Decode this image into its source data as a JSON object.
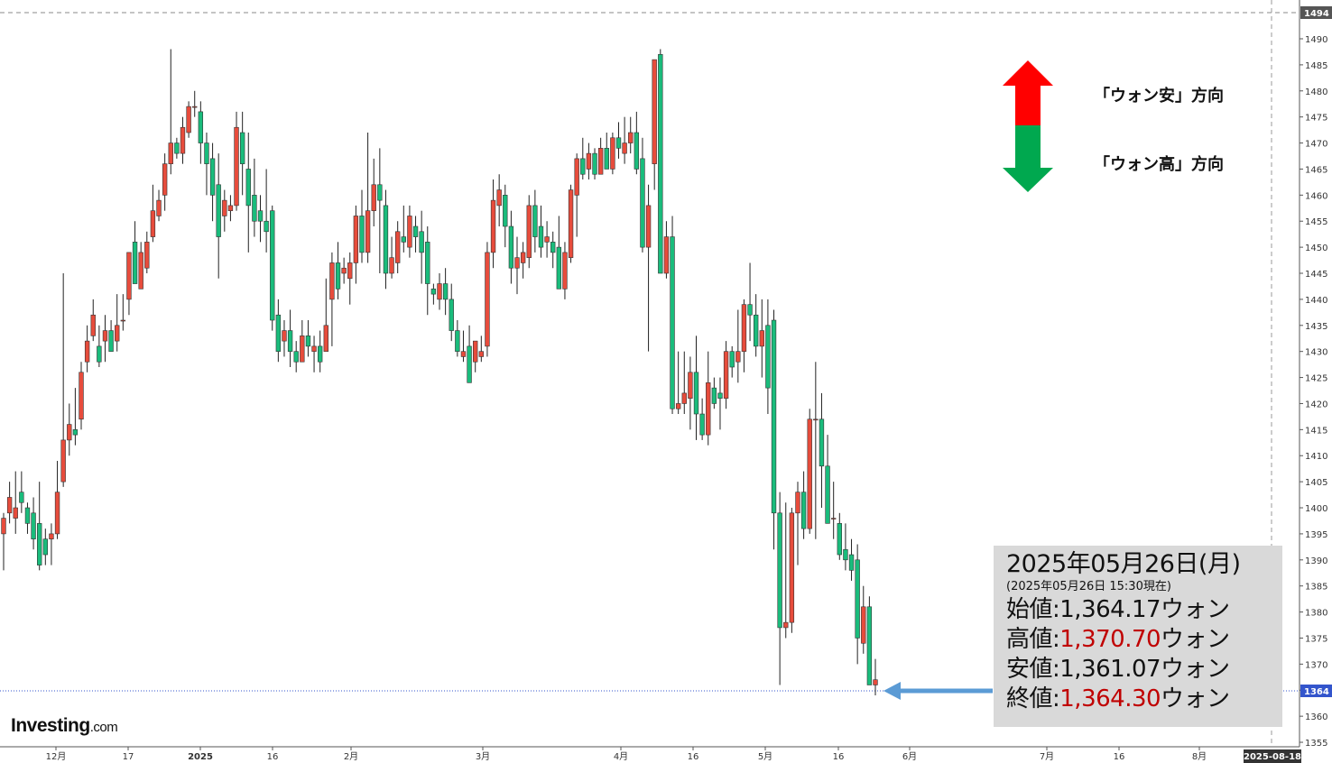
{
  "legend": {
    "up_label": "「ウォン安」方向",
    "down_label": "「ウォン高」方向",
    "up_color": "#ff0000",
    "down_color": "#00a84f"
  },
  "info": {
    "date": "2025年05月26日(月)",
    "asof": "(2025年05月26日 15:30現在)",
    "open_label": "始値:",
    "open_value": "1,364.17",
    "high_label": "高値:",
    "high_value": "1,370.70",
    "low_label": "安値:",
    "low_value": "1,361.07",
    "close_label": "終値:",
    "close_value": "1,364.30",
    "unit": "ウォン"
  },
  "logo": {
    "main": "Investing",
    "suffix": ".com"
  },
  "chart_data": {
    "type": "candlestick",
    "y_axis": {
      "ticks": [
        "1490",
        "1485",
        "1480",
        "1475",
        "1470",
        "1465",
        "1460",
        "1455",
        "1450",
        "1445",
        "1440",
        "1435",
        "1430",
        "1425",
        "1420",
        "1415",
        "1410",
        "1405",
        "1400",
        "1395",
        "1390",
        "1385",
        "1380",
        "1375",
        "1370",
        "1365",
        "1360",
        "1355"
      ],
      "ylim": [
        1353,
        1496
      ],
      "top_marker": "1494",
      "current_marker": "1364"
    },
    "x_axis": {
      "labels": [
        "12月",
        "17",
        "2025",
        "16",
        "2月",
        "3月",
        "4月",
        "16",
        "5月",
        "16",
        "6月",
        "7月",
        "16",
        "8月"
      ],
      "end_label": "2025-08-18"
    },
    "colors": {
      "up": "#e74c3c",
      "down": "#1abc7c",
      "current_line": "#3355cc"
    },
    "candles": [
      [
        1395,
        1398,
        1388,
        1399
      ],
      [
        1399,
        1402,
        1397,
        1405
      ],
      [
        1398,
        1400,
        1395,
        1407
      ],
      [
        1403,
        1401,
        1399,
        1407
      ],
      [
        1400,
        1397,
        1395,
        1401
      ],
      [
        1399,
        1394,
        1392,
        1402
      ],
      [
        1397,
        1389,
        1388,
        1405
      ],
      [
        1394,
        1391,
        1389,
        1396
      ],
      [
        1394,
        1395,
        1389,
        1397
      ],
      [
        1395,
        1403,
        1394,
        1409
      ],
      [
        1405,
        1413,
        1404,
        1445
      ],
      [
        1413,
        1416,
        1410,
        1420
      ],
      [
        1415,
        1414,
        1412,
        1423
      ],
      [
        1417,
        1426,
        1415,
        1428
      ],
      [
        1428,
        1432,
        1426,
        1435
      ],
      [
        1433,
        1437,
        1432,
        1440
      ],
      [
        1431,
        1428,
        1427,
        1435
      ],
      [
        1432,
        1434,
        1428,
        1437
      ],
      [
        1434,
        1430,
        1430,
        1436
      ],
      [
        1432,
        1435,
        1430,
        1441
      ],
      [
        1436,
        1436,
        1434,
        1441
      ],
      [
        1440,
        1449,
        1437,
        1449
      ],
      [
        1451,
        1443,
        1443,
        1455
      ],
      [
        1442,
        1449,
        1442,
        1451
      ],
      [
        1446,
        1451,
        1445,
        1453
      ],
      [
        1452,
        1457,
        1451,
        1462
      ],
      [
        1456,
        1459,
        1455,
        1461
      ],
      [
        1460,
        1466,
        1457,
        1468
      ],
      [
        1466,
        1470,
        1464,
        1488
      ],
      [
        1470,
        1468,
        1467,
        1471
      ],
      [
        1468,
        1473,
        1466,
        1475
      ],
      [
        1472,
        1477,
        1471,
        1478
      ],
      [
        1477,
        1477,
        1475,
        1480
      ],
      [
        1476,
        1470,
        1466,
        1478
      ],
      [
        1470,
        1466,
        1460,
        1472
      ],
      [
        1467,
        1460,
        1455,
        1470
      ],
      [
        1462,
        1452,
        1444,
        1468
      ],
      [
        1456,
        1459,
        1453,
        1461
      ],
      [
        1457,
        1458,
        1455,
        1460
      ],
      [
        1458,
        1473,
        1457,
        1476
      ],
      [
        1472,
        1466,
        1460,
        1476
      ],
      [
        1465,
        1458,
        1449,
        1472
      ],
      [
        1460,
        1455,
        1452,
        1467
      ],
      [
        1457,
        1455,
        1451,
        1460
      ],
      [
        1455,
        1453,
        1449,
        1465
      ],
      [
        1457,
        1436,
        1434,
        1458
      ],
      [
        1437,
        1430,
        1428,
        1440
      ],
      [
        1432,
        1434,
        1429,
        1436
      ],
      [
        1434,
        1430,
        1427,
        1438
      ],
      [
        1430,
        1428,
        1426,
        1432
      ],
      [
        1428,
        1433,
        1428,
        1436
      ],
      [
        1433,
        1431,
        1429,
        1436
      ],
      [
        1430,
        1431,
        1426,
        1433
      ],
      [
        1431,
        1428,
        1426,
        1434
      ],
      [
        1430,
        1435,
        1430,
        1444
      ],
      [
        1440,
        1447,
        1431,
        1449
      ],
      [
        1447,
        1442,
        1440,
        1451
      ],
      [
        1445,
        1446,
        1443,
        1448
      ],
      [
        1444,
        1447,
        1439,
        1449
      ],
      [
        1447,
        1456,
        1443,
        1458
      ],
      [
        1456,
        1449,
        1447,
        1461
      ],
      [
        1449,
        1457,
        1447,
        1472
      ],
      [
        1457,
        1462,
        1454,
        1467
      ],
      [
        1462,
        1459,
        1445,
        1469
      ],
      [
        1458,
        1445,
        1442,
        1461
      ],
      [
        1445,
        1448,
        1444,
        1452
      ],
      [
        1447,
        1453,
        1445,
        1455
      ],
      [
        1452,
        1451,
        1449,
        1458
      ],
      [
        1450,
        1456,
        1448,
        1458
      ],
      [
        1454,
        1452,
        1449,
        1456
      ],
      [
        1453,
        1449,
        1443,
        1457
      ],
      [
        1451,
        1443,
        1437,
        1454
      ],
      [
        1442,
        1441,
        1439,
        1443
      ],
      [
        1440,
        1443,
        1438,
        1445
      ],
      [
        1443,
        1440,
        1437,
        1446
      ],
      [
        1440,
        1434,
        1432,
        1443
      ],
      [
        1434,
        1430,
        1429,
        1436
      ],
      [
        1429,
        1430,
        1428,
        1434
      ],
      [
        1431,
        1424,
        1424,
        1435
      ],
      [
        1428,
        1432,
        1426,
        1432
      ],
      [
        1429,
        1430,
        1428,
        1433
      ],
      [
        1431,
        1449,
        1429,
        1451
      ],
      [
        1449,
        1459,
        1446,
        1463
      ],
      [
        1458,
        1461,
        1454,
        1464
      ],
      [
        1460,
        1454,
        1450,
        1462
      ],
      [
        1454,
        1446,
        1443,
        1457
      ],
      [
        1446,
        1448,
        1441,
        1452
      ],
      [
        1447,
        1449,
        1444,
        1451
      ],
      [
        1448,
        1458,
        1446,
        1460
      ],
      [
        1458,
        1452,
        1449,
        1461
      ],
      [
        1454,
        1450,
        1448,
        1458
      ],
      [
        1451,
        1452,
        1448,
        1455
      ],
      [
        1451,
        1449,
        1446,
        1453
      ],
      [
        1450,
        1442,
        1442,
        1456
      ],
      [
        1442,
        1449,
        1440,
        1451
      ],
      [
        1448,
        1461,
        1447,
        1462
      ],
      [
        1460,
        1467,
        1452,
        1468
      ],
      [
        1467,
        1464,
        1463,
        1471
      ],
      [
        1465,
        1468,
        1463,
        1470
      ],
      [
        1468,
        1464,
        1463,
        1469
      ],
      [
        1464,
        1469,
        1464,
        1471
      ],
      [
        1469,
        1465,
        1465,
        1472
      ],
      [
        1465,
        1471,
        1464,
        1472
      ],
      [
        1471,
        1469,
        1467,
        1474
      ],
      [
        1468,
        1470,
        1466,
        1475
      ],
      [
        1470,
        1472,
        1468,
        1475
      ],
      [
        1472,
        1465,
        1464,
        1476
      ],
      [
        1467,
        1450,
        1449,
        1471
      ],
      [
        1450,
        1458,
        1430,
        1462
      ],
      [
        1466,
        1486,
        1461,
        1486
      ],
      [
        1487,
        1445,
        1445,
        1488
      ],
      [
        1445,
        1452,
        1444,
        1455
      ],
      [
        1452,
        1419,
        1418,
        1456
      ],
      [
        1419,
        1420,
        1418,
        1430
      ],
      [
        1420,
        1422,
        1418,
        1430
      ],
      [
        1421,
        1426,
        1415,
        1429
      ],
      [
        1426,
        1418,
        1413,
        1433
      ],
      [
        1418,
        1414,
        1413,
        1421
      ],
      [
        1414,
        1424,
        1412,
        1430
      ],
      [
        1423,
        1420,
        1419,
        1425
      ],
      [
        1422,
        1421,
        1415,
        1425
      ],
      [
        1421,
        1430,
        1419,
        1432
      ],
      [
        1430,
        1427,
        1425,
        1431
      ],
      [
        1428,
        1430,
        1424,
        1438
      ],
      [
        1430,
        1439,
        1426,
        1440
      ],
      [
        1439,
        1437,
        1432,
        1447
      ],
      [
        1437,
        1431,
        1429,
        1441
      ],
      [
        1431,
        1434,
        1425,
        1440
      ],
      [
        1435,
        1423,
        1418,
        1440
      ],
      [
        1436,
        1399,
        1392,
        1438
      ],
      [
        1399,
        1377,
        1366,
        1403
      ],
      [
        1377,
        1378,
        1375,
        1401
      ],
      [
        1378,
        1399,
        1376,
        1400
      ],
      [
        1399,
        1403,
        1389,
        1405
      ],
      [
        1403,
        1396,
        1394,
        1407
      ],
      [
        1396,
        1417,
        1395,
        1419
      ],
      [
        1417,
        1417,
        1394,
        1428
      ],
      [
        1417,
        1408,
        1400,
        1422
      ],
      [
        1408,
        1397,
        1397,
        1414
      ],
      [
        1398,
        1398,
        1394,
        1405
      ],
      [
        1397,
        1391,
        1390,
        1399
      ],
      [
        1392,
        1390,
        1388,
        1397
      ],
      [
        1391,
        1388,
        1386,
        1394
      ],
      [
        1390,
        1375,
        1370,
        1393
      ],
      [
        1374,
        1381,
        1372,
        1385
      ],
      [
        1381,
        1366,
        1366,
        1383
      ],
      [
        1366,
        1367,
        1364,
        1371
      ]
    ]
  }
}
